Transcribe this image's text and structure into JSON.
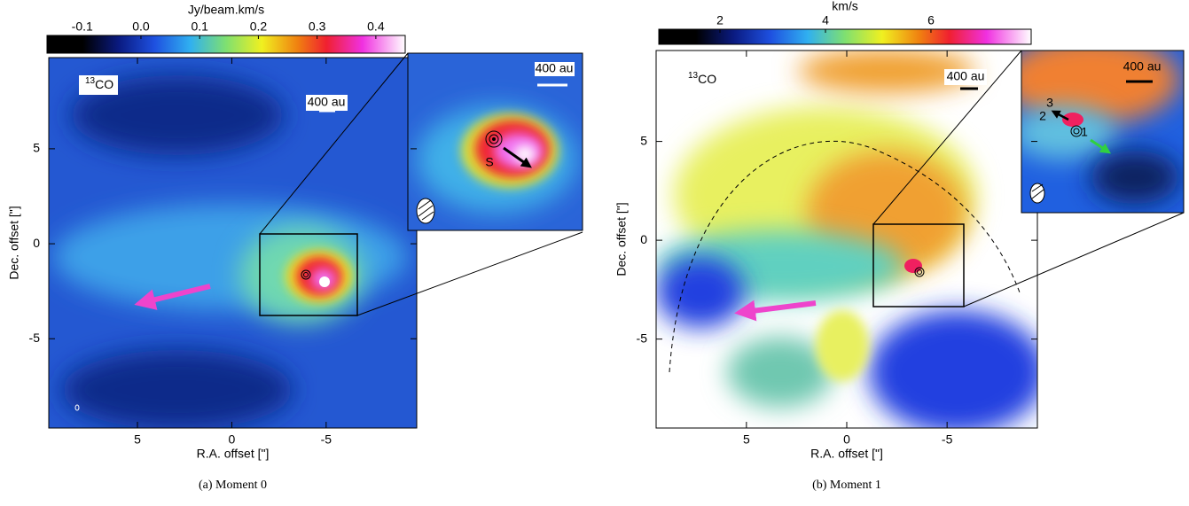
{
  "panels": [
    {
      "caption": "(a) Moment 0",
      "colorbar": {
        "label": "Jy/beam.km/s",
        "lim": [
          -0.16,
          0.45
        ],
        "ticks": [
          -0.1,
          {
            "value": 0,
            "label": "0.0"
          },
          0.1,
          0.2,
          0.3,
          0.4
        ]
      },
      "xlabel": "R.A. offset [\"]",
      "ylabel": "Dec. offset [\"]",
      "xlim": [
        9.7,
        -9.8
      ],
      "ylim": [
        -9.7,
        9.8
      ],
      "xticks": [
        5,
        0,
        -5
      ],
      "yticks": [
        5,
        0,
        -5
      ],
      "isotope": "13",
      "molecule": "CO",
      "scale_bar": "400 au",
      "inset": {
        "scale_bar": "400 au",
        "source": "S"
      }
    },
    {
      "caption": "(b) Moment 1",
      "colorbar": {
        "label": "km/s",
        "lim": [
          0.84,
          7.9
        ],
        "ticks": [
          2,
          4,
          6
        ]
      },
      "xlabel": "R.A. offset [\"]",
      "ylabel": "Dec. offset [\"]",
      "xlim": [
        9.5,
        -9.5
      ],
      "ylim": [
        -9.5,
        9.6
      ],
      "xticks": [
        5,
        0,
        -5
      ],
      "yticks": [
        5,
        0,
        -5
      ],
      "isotope": "13",
      "molecule": "CO",
      "scale_bar": "400 au",
      "inset": {
        "scale_bar": "400 au",
        "markers": [
          "1",
          "2",
          "3"
        ]
      }
    }
  ]
}
